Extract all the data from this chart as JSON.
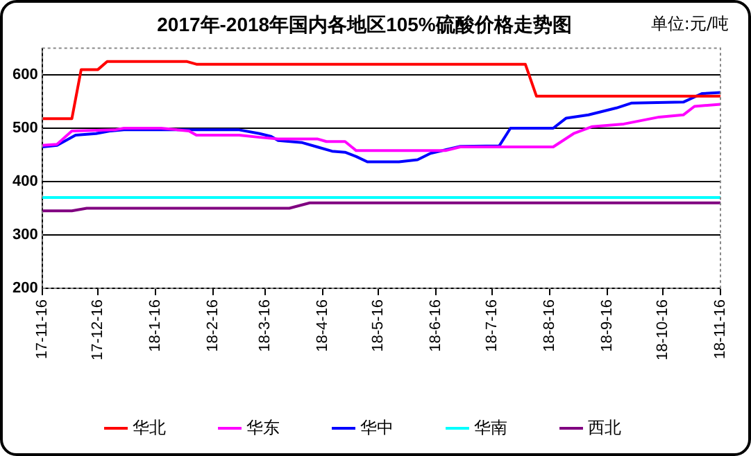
{
  "chart_data": {
    "type": "line",
    "title": "2017年-2018年国内各地区105%硫酸价格走势图",
    "annotations": [
      "单位:元/吨"
    ],
    "xlim": [
      "2017-11-16",
      "2018-11-16"
    ],
    "xticks": [
      {
        "value": "2017-11-16",
        "label": "17-11-16"
      },
      {
        "value": "2017-12-16",
        "label": "17-12-16"
      },
      {
        "value": "2018-01-16",
        "label": "18-1-16"
      },
      {
        "value": "2018-02-16",
        "label": "18-2-16"
      },
      {
        "value": "2018-03-16",
        "label": "18-3-16"
      },
      {
        "value": "2018-04-16",
        "label": "18-4-16"
      },
      {
        "value": "2018-05-16",
        "label": "18-5-16"
      },
      {
        "value": "2018-06-16",
        "label": "18-6-16"
      },
      {
        "value": "2018-07-16",
        "label": "18-7-16"
      },
      {
        "value": "2018-08-16",
        "label": "18-8-16"
      },
      {
        "value": "2018-09-16",
        "label": "18-9-16"
      },
      {
        "value": "2018-10-16",
        "label": "18-10-16"
      },
      {
        "value": "2018-11-16",
        "label": "18-11-16"
      }
    ],
    "ylim": [
      200,
      650
    ],
    "yticks": [
      200,
      300,
      400,
      500,
      600
    ],
    "grid": "y",
    "legend": "bottom",
    "marker": "none",
    "line_style": "solid",
    "series": [
      {
        "name": "华北",
        "color": "#ff0000",
        "x": [
          "2017-11-16",
          "2017-12-02",
          "2017-12-07",
          "2017-12-16",
          "2017-12-21",
          "2018-02-02",
          "2018-02-07",
          "2018-08-03",
          "2018-08-09",
          "2018-11-16"
        ],
        "values": [
          518,
          518,
          610,
          610,
          625,
          625,
          620,
          620,
          560,
          560
        ]
      },
      {
        "name": "华东",
        "color": "#ff00ff",
        "x": [
          "2017-11-16",
          "2017-11-24",
          "2017-12-02",
          "2017-12-25",
          "2017-12-30",
          "2018-01-19",
          "2018-02-03",
          "2018-02-07",
          "2018-03-02",
          "2018-03-13",
          "2018-03-23",
          "2018-04-13",
          "2018-04-18",
          "2018-04-28",
          "2018-05-04",
          "2018-06-21",
          "2018-06-29",
          "2018-08-18",
          "2018-08-29",
          "2018-09-08",
          "2018-09-25",
          "2018-10-14",
          "2018-10-27",
          "2018-11-02",
          "2018-11-16"
        ],
        "values": [
          468,
          470,
          495,
          497,
          500,
          500,
          495,
          487,
          487,
          483,
          480,
          480,
          475,
          475,
          458,
          458,
          465,
          465,
          490,
          503,
          508,
          521,
          525,
          541,
          545
        ]
      },
      {
        "name": "华中",
        "color": "#0000ff",
        "x": [
          "2017-11-16",
          "2017-11-24",
          "2017-12-04",
          "2017-12-15",
          "2017-12-23",
          "2017-12-30",
          "2018-03-02",
          "2018-03-13",
          "2018-03-19",
          "2018-03-23",
          "2018-04-05",
          "2018-04-13",
          "2018-04-21",
          "2018-04-28",
          "2018-05-04",
          "2018-05-10",
          "2018-05-27",
          "2018-06-06",
          "2018-06-13",
          "2018-06-29",
          "2018-07-20",
          "2018-07-26",
          "2018-08-18",
          "2018-08-25",
          "2018-09-06",
          "2018-09-21",
          "2018-09-29",
          "2018-10-27",
          "2018-11-06",
          "2018-11-16"
        ],
        "values": [
          465,
          468,
          487,
          490,
          495,
          497,
          497,
          490,
          485,
          477,
          473,
          465,
          457,
          455,
          447,
          437,
          437,
          441,
          453,
          466,
          467,
          500,
          500,
          519,
          525,
          538,
          547,
          549,
          565,
          567
        ]
      },
      {
        "name": "华南",
        "color": "#00ffff",
        "x": [
          "2017-11-16",
          "2018-11-16"
        ],
        "values": [
          370,
          370
        ]
      },
      {
        "name": "西北",
        "color": "#800080",
        "x": [
          "2017-11-16",
          "2017-12-02",
          "2017-12-10",
          "2018-03-29",
          "2018-04-09",
          "2018-11-16"
        ],
        "values": [
          345,
          345,
          350,
          350,
          360,
          360
        ]
      }
    ]
  }
}
